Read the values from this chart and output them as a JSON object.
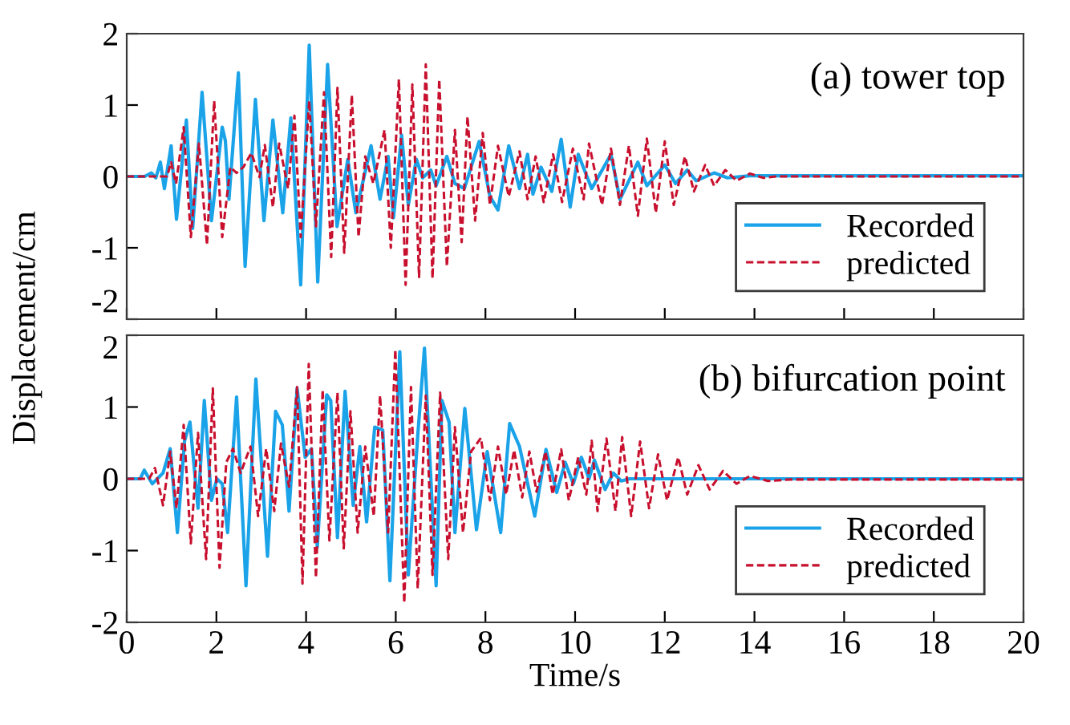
{
  "chart_data": [
    {
      "type": "line",
      "ylabel": "Displacement/cm",
      "annotations": [
        "(a) tower top"
      ],
      "xlim": [
        0,
        20
      ],
      "xticks": [
        0,
        2,
        4,
        6,
        8,
        10,
        12,
        14,
        16,
        18,
        20
      ],
      "ylim": [
        -2,
        2
      ],
      "yticks": [
        -2,
        -1,
        0,
        1,
        2
      ],
      "tick_labels": "y",
      "legend": "bottom right",
      "grid": false,
      "series": [
        {
          "name": "Recorded",
          "color": "#1aa3e8",
          "line_style": "solid",
          "x": [
            0,
            0.4,
            0.55,
            0.65,
            0.75,
            0.84,
            0.99,
            1.11,
            1.33,
            1.47,
            1.68,
            1.89,
            2.13,
            2.2,
            2.28,
            2.49,
            2.64,
            2.87,
            3.06,
            3.26,
            3.48,
            3.66,
            3.88,
            4.07,
            4.26,
            4.48,
            4.69,
            4.93,
            5.11,
            5.45,
            5.65,
            5.83,
            5.95,
            6.13,
            6.28,
            6.46,
            6.6,
            6.78,
            6.9,
            7.14,
            7.32,
            7.53,
            7.86,
            8.1,
            8.28,
            8.52,
            8.76,
            8.94,
            9.06,
            9.24,
            9.48,
            9.69,
            9.89,
            10.07,
            10.37,
            10.8,
            11.0,
            11.4,
            11.6,
            12.0,
            12.24,
            12.5,
            12.7,
            13.1,
            13.4,
            13.9,
            20
          ],
          "values": [
            0,
            0,
            0.05,
            -0.02,
            0.2,
            -0.17,
            0.43,
            -0.6,
            0.79,
            -0.73,
            1.18,
            -0.62,
            0.69,
            0.5,
            -0.32,
            1.45,
            -1.26,
            1.08,
            -0.62,
            0.79,
            -0.51,
            0.82,
            -1.52,
            1.84,
            -1.48,
            1.57,
            -0.7,
            0.24,
            -0.51,
            0.43,
            -0.32,
            0.28,
            -0.58,
            0.58,
            -0.4,
            0.24,
            -0.02,
            0.09,
            -0.13,
            0.28,
            -0.1,
            -0.17,
            0.49,
            -0.28,
            -0.47,
            0.43,
            -0.17,
            0.31,
            -0.25,
            0.13,
            -0.21,
            0.52,
            -0.43,
            0.31,
            -0.17,
            0.31,
            -0.32,
            0.2,
            -0.13,
            0.16,
            -0.1,
            0.09,
            -0.06,
            0.05,
            -0.02,
            0.01,
            0.01
          ]
        },
        {
          "name": "predicted",
          "color": "#c8102e",
          "line_style": "dashed",
          "x": [
            0,
            0.9,
            0.99,
            1.1,
            1.27,
            1.43,
            1.61,
            1.79,
            1.95,
            2.13,
            2.31,
            2.45,
            2.6,
            2.78,
            2.96,
            3.08,
            3.26,
            3.4,
            3.6,
            3.74,
            3.88,
            4.07,
            4.22,
            4.4,
            4.56,
            4.7,
            4.85,
            5.02,
            5.17,
            5.32,
            5.5,
            5.75,
            5.89,
            6.07,
            6.22,
            6.37,
            6.52,
            6.67,
            6.82,
            6.97,
            7.14,
            7.32,
            7.47,
            7.6,
            7.77,
            7.94,
            8.1,
            8.28,
            8.52,
            8.76,
            8.94,
            9.12,
            9.3,
            9.51,
            9.71,
            9.95,
            10.19,
            10.31,
            10.6,
            10.8,
            11.0,
            11.2,
            11.4,
            11.6,
            11.8,
            12.0,
            12.2,
            12.45,
            12.65,
            12.9,
            13.1,
            13.35,
            13.6,
            13.9,
            14.2,
            14.5,
            20
          ],
          "values": [
            0,
            0,
            0.2,
            -0.1,
            0.69,
            -0.85,
            0.46,
            -0.96,
            1.06,
            -0.85,
            0.13,
            0.05,
            0.13,
            0.33,
            -0.01,
            0.44,
            -0.43,
            0.46,
            -0.17,
            0.85,
            -0.85,
            1.06,
            -0.7,
            1.18,
            -1.13,
            1.24,
            -1.07,
            1.14,
            -0.85,
            0.28,
            -0.1,
            0.65,
            -1.0,
            1.36,
            -1.52,
            1.29,
            -1.41,
            1.57,
            -1.43,
            1.36,
            -1.26,
            0.65,
            -0.92,
            0.84,
            -0.62,
            0.61,
            -0.4,
            0.43,
            -0.28,
            0.35,
            -0.32,
            0.28,
            -0.36,
            0.31,
            -0.36,
            0.39,
            -0.32,
            0.46,
            -0.4,
            0.39,
            -0.4,
            0.43,
            -0.55,
            0.53,
            -0.51,
            0.49,
            -0.4,
            0.28,
            -0.21,
            0.16,
            -0.13,
            0.09,
            -0.06,
            0.04,
            -0.02,
            0.0,
            0.0
          ]
        }
      ]
    },
    {
      "type": "line",
      "xlabel": "Time/s",
      "annotations": [
        "(b) bifurcation point"
      ],
      "xlim": [
        0,
        20
      ],
      "xticks": [
        0,
        2,
        4,
        6,
        8,
        10,
        12,
        14,
        16,
        18,
        20
      ],
      "ylim": [
        -2,
        2
      ],
      "yticks": [
        -2,
        -1,
        0,
        1,
        2
      ],
      "legend": "bottom right",
      "grid": false,
      "series": [
        {
          "name": "Recorded",
          "color": "#1aa3e8",
          "line_style": "solid",
          "x": [
            0,
            0.3,
            0.39,
            0.57,
            0.81,
            0.97,
            1.13,
            1.29,
            1.41,
            1.59,
            1.73,
            1.89,
            2.01,
            2.13,
            2.25,
            2.45,
            2.66,
            2.88,
            3.14,
            3.32,
            3.47,
            3.62,
            3.8,
            3.98,
            4.12,
            4.25,
            4.46,
            4.55,
            4.7,
            4.87,
            5.05,
            5.2,
            5.35,
            5.53,
            5.71,
            5.87,
            6.09,
            6.28,
            6.49,
            6.64,
            6.9,
            7.03,
            7.19,
            7.32,
            7.54,
            7.8,
            8.04,
            8.34,
            8.54,
            8.76,
            9.1,
            9.35,
            9.59,
            9.78,
            9.96,
            10.14,
            10.31,
            10.43,
            10.67,
            10.85,
            11.03,
            11.21,
            20
          ],
          "values": [
            0,
            0,
            0.12,
            -0.07,
            0.08,
            0.42,
            -0.75,
            0.53,
            0.79,
            -0.41,
            1.09,
            -0.3,
            0.0,
            -0.07,
            -0.75,
            1.14,
            -1.49,
            1.39,
            -1.08,
            0.94,
            0.75,
            -0.45,
            1.26,
            0.3,
            0.42,
            -0.95,
            1.17,
            1.09,
            -0.82,
            1.22,
            -0.37,
            0.45,
            -0.6,
            0.72,
            0.68,
            -1.42,
            1.77,
            -1.34,
            0.6,
            1.82,
            -1.49,
            1.09,
            0.79,
            -0.75,
            0.98,
            -0.71,
            0.38,
            -0.75,
            0.77,
            0.45,
            -0.52,
            0.41,
            -0.19,
            0.23,
            -0.07,
            0.3,
            0.0,
            0.26,
            -0.15,
            0.08,
            -0.03,
            0.0,
            0.0
          ]
        },
        {
          "name": "predicted",
          "color": "#c8102e",
          "line_style": "dashed",
          "x": [
            0,
            0.5,
            0.63,
            0.81,
            0.97,
            1.11,
            1.27,
            1.43,
            1.59,
            1.77,
            1.92,
            2.07,
            2.22,
            2.37,
            2.54,
            2.76,
            2.93,
            3.11,
            3.29,
            3.44,
            3.62,
            3.8,
            3.92,
            4.06,
            4.22,
            4.37,
            4.52,
            4.7,
            4.84,
            4.99,
            5.15,
            5.32,
            5.51,
            5.65,
            5.83,
            5.99,
            6.19,
            6.34,
            6.49,
            6.67,
            6.82,
            6.99,
            7.17,
            7.32,
            7.5,
            7.68,
            7.9,
            8.1,
            8.28,
            8.46,
            8.64,
            8.82,
            8.98,
            9.14,
            9.34,
            9.5,
            9.69,
            9.86,
            10.07,
            10.25,
            10.37,
            10.5,
            10.7,
            10.9,
            11.05,
            11.25,
            11.45,
            11.65,
            11.85,
            12.05,
            12.3,
            12.5,
            12.75,
            13.0,
            13.3,
            13.6,
            13.9,
            14.3,
            14.8,
            20
          ],
          "values": [
            0,
            0,
            0.15,
            -0.37,
            0.38,
            -0.41,
            0.75,
            -0.9,
            0.64,
            -1.12,
            1.26,
            -1.24,
            0.23,
            0.42,
            0.08,
            0.45,
            -0.52,
            0.42,
            -0.45,
            0.49,
            -0.11,
            1.28,
            -1.46,
            1.6,
            -1.38,
            1.24,
            -0.86,
            1.2,
            -0.97,
            0.94,
            -0.75,
            0.45,
            -0.52,
            1.16,
            -0.75,
            1.8,
            -1.73,
            1.28,
            -1.53,
            1.16,
            -1.34,
            1.2,
            -1.12,
            0.72,
            -0.75,
            0.38,
            0.57,
            -0.3,
            0.45,
            -0.22,
            0.4,
            -0.26,
            0.38,
            -0.18,
            0.38,
            -0.22,
            0.41,
            -0.3,
            0.3,
            -0.22,
            0.53,
            -0.45,
            0.56,
            -0.45,
            0.58,
            -0.52,
            0.52,
            -0.41,
            0.34,
            -0.3,
            0.3,
            -0.22,
            0.19,
            -0.15,
            0.11,
            -0.07,
            0.04,
            -0.03,
            -0.01,
            -0.01
          ]
        }
      ]
    }
  ]
}
